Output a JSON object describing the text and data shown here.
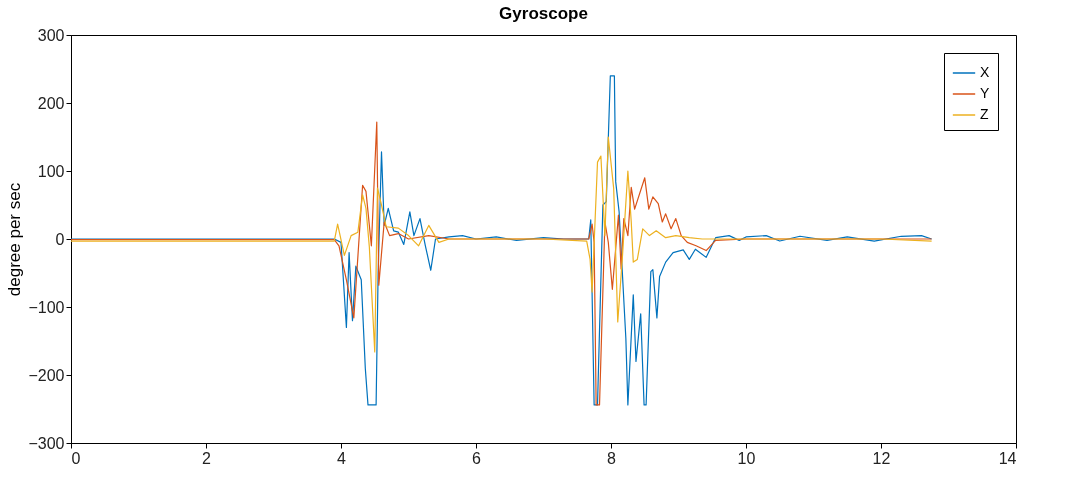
{
  "chart_data": {
    "type": "line",
    "title": "Gyroscope",
    "ylabel": "degree per sec",
    "xlim": [
      0,
      14
    ],
    "xticks": [
      0,
      2,
      4,
      6,
      8,
      10,
      12,
      14
    ],
    "ylim": [
      -300,
      300
    ],
    "yticks": [
      -300,
      -200,
      -100,
      0,
      100,
      200,
      300
    ],
    "grid": false,
    "legend": "top right",
    "series": [
      {
        "name": "X",
        "color": "#0072bd",
        "x": [
          0,
          3.9,
          4.0,
          4.08,
          4.12,
          4.17,
          4.22,
          4.3,
          4.36,
          4.4,
          4.52,
          4.55,
          4.6,
          4.64,
          4.7,
          4.78,
          4.85,
          4.93,
          5.02,
          5.08,
          5.17,
          5.25,
          5.33,
          5.4,
          5.6,
          5.8,
          6.0,
          6.3,
          6.6,
          7.0,
          7.3,
          7.6,
          7.67,
          7.7,
          7.75,
          7.8,
          7.88,
          7.93,
          7.99,
          8.05,
          8.07,
          8.12,
          8.22,
          8.25,
          8.33,
          8.37,
          8.44,
          8.49,
          8.52,
          8.59,
          8.62,
          8.68,
          8.72,
          8.81,
          8.92,
          9.07,
          9.16,
          9.25,
          9.41,
          9.55,
          9.75,
          9.9,
          10.0,
          10.3,
          10.5,
          10.8,
          11.2,
          11.5,
          11.9,
          12.3,
          12.6,
          12.75
        ],
        "values": [
          0,
          0,
          -5,
          -130,
          -20,
          -120,
          -40,
          -60,
          -190,
          -244,
          -244,
          -50,
          128,
          20,
          45,
          12,
          10,
          -8,
          40,
          5,
          30,
          -10,
          -46,
          0,
          3,
          5,
          0,
          3,
          -2,
          2,
          0,
          0,
          0,
          28,
          -244,
          -244,
          50,
          55,
          240,
          240,
          84,
          40,
          -146,
          -244,
          -82,
          -180,
          -110,
          -244,
          -244,
          -48,
          -45,
          -116,
          -55,
          -34,
          -20,
          -16,
          -30,
          -15,
          -27,
          2,
          5,
          -2,
          3,
          5,
          -3,
          4,
          -2,
          3,
          -3,
          4,
          5,
          0
        ]
      },
      {
        "name": "Y",
        "color": "#d95319",
        "x": [
          0,
          3.9,
          3.97,
          4.08,
          4.19,
          4.32,
          4.37,
          4.45,
          4.53,
          4.56,
          4.64,
          4.72,
          4.85,
          5.0,
          5.3,
          5.6,
          6.0,
          7.0,
          7.67,
          7.72,
          7.75,
          7.78,
          7.83,
          7.91,
          7.96,
          8.02,
          8.11,
          8.15,
          8.19,
          8.25,
          8.3,
          8.35,
          8.5,
          8.56,
          8.62,
          8.7,
          8.76,
          8.81,
          8.89,
          8.96,
          9.04,
          9.13,
          9.26,
          9.41,
          9.55,
          10.0,
          11.0,
          12.0,
          12.75
        ],
        "values": [
          -1,
          -1,
          -10,
          -60,
          -116,
          79,
          70,
          -10,
          172,
          -68,
          25,
          5,
          8,
          0,
          5,
          0,
          0,
          0,
          0,
          22,
          -5,
          -244,
          -244,
          25,
          -5,
          -74,
          35,
          -44,
          30,
          5,
          76,
          44,
          90,
          44,
          62,
          52,
          25,
          37,
          15,
          30,
          5,
          -5,
          -10,
          -17,
          -2,
          0,
          0,
          0,
          0
        ]
      },
      {
        "name": "Z",
        "color": "#edb120",
        "x": [
          0,
          3.9,
          3.95,
          4.05,
          4.15,
          4.25,
          4.32,
          4.37,
          4.42,
          4.5,
          4.54,
          4.6,
          4.67,
          4.85,
          5.0,
          5.15,
          5.3,
          5.45,
          5.6,
          6.0,
          7.0,
          7.64,
          7.69,
          7.72,
          7.8,
          7.85,
          7.91,
          7.96,
          8.04,
          8.1,
          8.17,
          8.25,
          8.3,
          8.33,
          8.39,
          8.47,
          8.57,
          8.67,
          8.81,
          8.96,
          9.16,
          9.35,
          10.0,
          11.0,
          12.0,
          12.75
        ],
        "values": [
          -3,
          -3,
          22,
          -24,
          5,
          10,
          65,
          45,
          -12,
          -166,
          75,
          50,
          18,
          16,
          5,
          -10,
          20,
          -5,
          0,
          0,
          0,
          -3,
          -30,
          -78,
          113,
          122,
          5,
          150,
          74,
          -122,
          -25,
          100,
          25,
          -34,
          -30,
          15,
          5,
          12,
          2,
          5,
          2,
          0,
          0,
          0,
          0,
          -3
        ]
      }
    ]
  }
}
